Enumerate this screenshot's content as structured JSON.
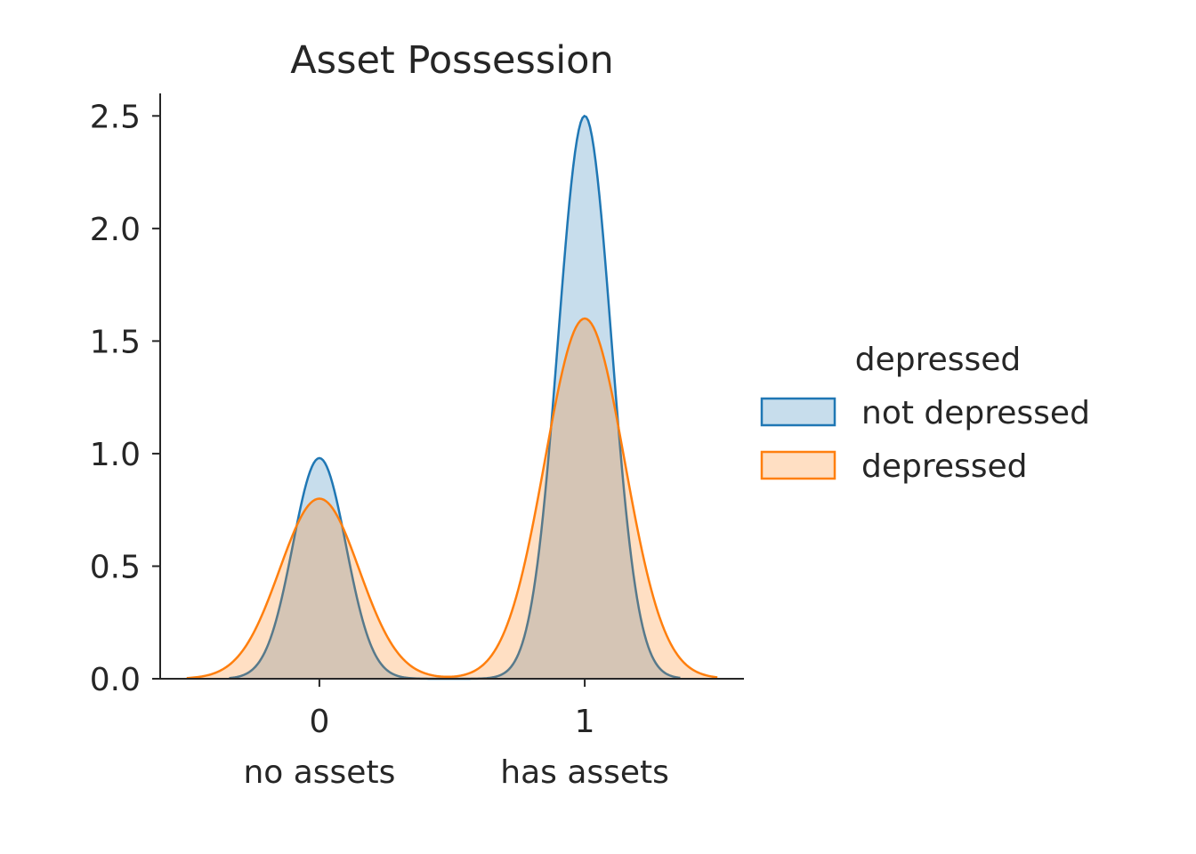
{
  "chart_data": {
    "type": "area",
    "title": "Asset Possession",
    "xlabel": "",
    "ylabel": "",
    "xlim": [
      -0.6,
      1.6
    ],
    "ylim": [
      0,
      2.6
    ],
    "x_ticks": [
      {
        "value": 0,
        "label": "0",
        "sublabel": "no assets"
      },
      {
        "value": 1,
        "label": "1",
        "sublabel": "has assets"
      }
    ],
    "y_ticks": [
      0.0,
      0.5,
      1.0,
      1.5,
      2.0,
      2.5
    ],
    "y_tick_labels": [
      "0.0",
      "0.5",
      "1.0",
      "1.5",
      "2.0",
      "2.5"
    ],
    "grid": false,
    "legend": {
      "title": "depressed",
      "placement": "right"
    },
    "series": [
      {
        "name": "not depressed",
        "color": "#1f77b4",
        "extent": [
          -0.34,
          1.36
        ],
        "peaks": [
          {
            "x": 0,
            "y": 0.98,
            "sd": 0.1
          },
          {
            "x": 1,
            "y": 2.5,
            "sd": 0.1
          }
        ]
      },
      {
        "name": "depressed",
        "color": "#ff7f0e",
        "extent": [
          -0.5,
          1.5
        ],
        "peaks": [
          {
            "x": 0,
            "y": 0.8,
            "sd": 0.15
          },
          {
            "x": 1,
            "y": 1.6,
            "sd": 0.15
          }
        ]
      }
    ]
  }
}
